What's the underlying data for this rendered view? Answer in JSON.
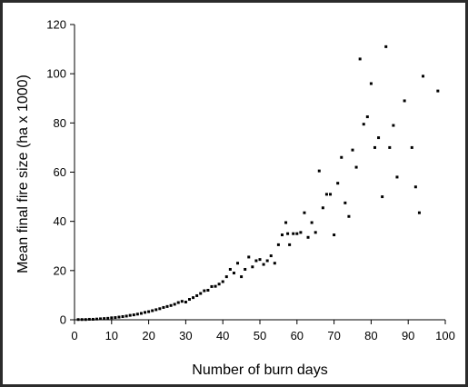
{
  "chart_data": {
    "type": "scatter",
    "title": "",
    "xlabel": "Number of burn days",
    "ylabel": "Mean final fire size (ha x 1000)",
    "xlim": [
      0,
      100
    ],
    "ylim": [
      0,
      120
    ],
    "xticks": [
      0,
      10,
      20,
      30,
      40,
      50,
      60,
      70,
      80,
      90,
      100
    ],
    "yticks": [
      0,
      20,
      40,
      60,
      80,
      100,
      120
    ],
    "grid": false,
    "legend": "none",
    "marker_color": "#000000",
    "series": [
      {
        "points": [
          [
            1,
            0.1
          ],
          [
            2,
            0.1
          ],
          [
            3,
            0.1
          ],
          [
            4,
            0.2
          ],
          [
            5,
            0.2
          ],
          [
            6,
            0.3
          ],
          [
            7,
            0.4
          ],
          [
            8,
            0.5
          ],
          [
            9,
            0.6
          ],
          [
            10,
            0.8
          ],
          [
            11,
            0.9
          ],
          [
            12,
            1.1
          ],
          [
            13,
            1.3
          ],
          [
            14,
            1.5
          ],
          [
            15,
            1.8
          ],
          [
            16,
            2.0
          ],
          [
            17,
            2.3
          ],
          [
            18,
            2.6
          ],
          [
            19,
            3.0
          ],
          [
            20,
            3.3
          ],
          [
            21,
            3.7
          ],
          [
            22,
            4.1
          ],
          [
            23,
            4.5
          ],
          [
            24,
            5.0
          ],
          [
            25,
            5.4
          ],
          [
            26,
            5.8
          ],
          [
            27,
            6.3
          ],
          [
            28,
            7.0
          ],
          [
            29,
            7.5
          ],
          [
            30,
            7.2
          ],
          [
            31,
            8.3
          ],
          [
            32,
            9.0
          ],
          [
            33,
            9.8
          ],
          [
            34,
            10.7
          ],
          [
            35,
            11.8
          ],
          [
            36,
            12.0
          ],
          [
            37,
            13.5
          ],
          [
            38,
            13.6
          ],
          [
            39,
            14.5
          ],
          [
            40,
            15.5
          ],
          [
            41,
            17.5
          ],
          [
            42,
            20.5
          ],
          [
            43,
            19.0
          ],
          [
            44,
            23.0
          ],
          [
            45,
            17.5
          ],
          [
            46,
            20.5
          ],
          [
            47,
            25.5
          ],
          [
            48,
            21.5
          ],
          [
            49,
            24.0
          ],
          [
            50,
            24.5
          ],
          [
            51,
            22.5
          ],
          [
            52,
            24.0
          ],
          [
            53,
            26.0
          ],
          [
            54,
            23.0
          ],
          [
            55,
            30.5
          ],
          [
            56,
            34.5
          ],
          [
            57,
            39.5
          ],
          [
            57.5,
            35.0
          ],
          [
            58,
            30.5
          ],
          [
            59,
            35.0
          ],
          [
            60,
            35.0
          ],
          [
            61,
            35.5
          ],
          [
            62,
            43.5
          ],
          [
            63,
            33.5
          ],
          [
            64,
            39.5
          ],
          [
            65,
            35.5
          ],
          [
            66,
            60.5
          ],
          [
            67,
            45.5
          ],
          [
            68,
            51.0
          ],
          [
            69,
            51.0
          ],
          [
            70,
            34.5
          ],
          [
            71,
            55.5
          ],
          [
            72,
            66.0
          ],
          [
            73,
            47.5
          ],
          [
            74,
            42.0
          ],
          [
            75,
            69.0
          ],
          [
            76,
            62.0
          ],
          [
            77,
            106.0
          ],
          [
            78,
            79.5
          ],
          [
            79,
            82.5
          ],
          [
            80,
            96.0
          ],
          [
            81,
            70.0
          ],
          [
            82,
            74.0
          ],
          [
            83,
            50.0
          ],
          [
            84,
            111.0
          ],
          [
            85,
            70.0
          ],
          [
            86,
            79.0
          ],
          [
            87,
            58.0
          ],
          [
            89,
            89.0
          ],
          [
            91,
            70.0
          ],
          [
            92,
            54.0
          ],
          [
            93,
            43.5
          ],
          [
            94,
            99.0
          ],
          [
            98,
            93.0
          ]
        ]
      }
    ]
  }
}
